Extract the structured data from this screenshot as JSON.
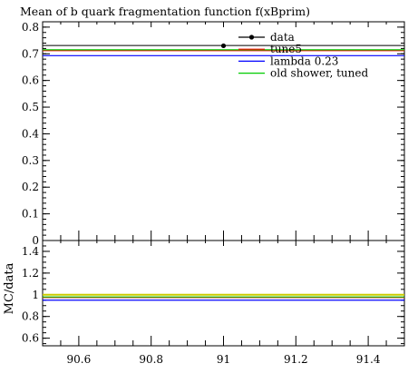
{
  "chart_data": {
    "type": "line",
    "title": "Mean of b quark fragmentation function f(xBprim)",
    "xlabel": "",
    "ylabel": "",
    "ratio_ylabel": "MC/data",
    "xlim": [
      90.5,
      91.5
    ],
    "ylim": [
      0,
      0.82
    ],
    "ratio_ylim": [
      0.53,
      1.5
    ],
    "x_ticks": [
      90.6,
      90.8,
      91.0,
      91.2,
      91.4
    ],
    "x_tick_labels": [
      "90.6",
      "90.8",
      "91",
      "91.2",
      "91.4"
    ],
    "y_ticks": [
      0,
      0.1,
      0.2,
      0.3,
      0.4,
      0.5,
      0.6,
      0.7,
      0.8
    ],
    "y_tick_labels": [
      "0",
      "0.1",
      "0.2",
      "0.3",
      "0.4",
      "0.5",
      "0.6",
      "0.7",
      "0.8"
    ],
    "ratio_y_ticks": [
      0.6,
      0.8,
      1.0,
      1.2,
      1.4
    ],
    "ratio_y_tick_labels": [
      "0.6",
      "0.8",
      "1",
      "1.2",
      "1.4"
    ],
    "legend_position": "top-right",
    "series": [
      {
        "name": "data",
        "color": "#000000",
        "x": [
          91.0
        ],
        "y": [
          0.73
        ],
        "marker": true,
        "band": 0.731
      },
      {
        "name": "tune5",
        "color": "#ff0000",
        "y": 0.712
      },
      {
        "name": "lambda 0.23",
        "color": "#0000ff",
        "y": 0.693
      },
      {
        "name": "old shower, tuned",
        "color": "#00cc00",
        "y": 0.715
      }
    ],
    "ratio_series": [
      {
        "name": "tune5",
        "color": "#ff0000",
        "y": 0.975
      },
      {
        "name": "lambda 0.23",
        "color": "#0000ff",
        "y": 0.95
      },
      {
        "name": "old shower, tuned",
        "color": "#00cc00",
        "y": 0.98
      },
      {
        "name": "data band",
        "color": "#cccc00",
        "y": 1.0
      }
    ]
  }
}
